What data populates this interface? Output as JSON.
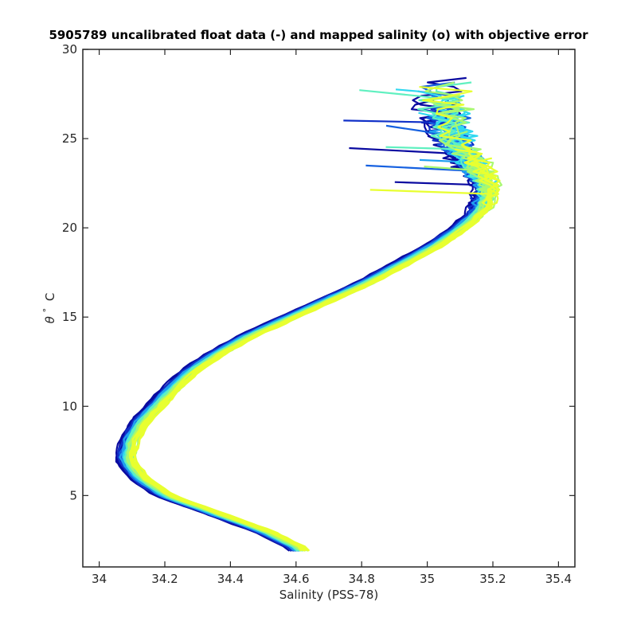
{
  "chart_data": {
    "type": "line",
    "title": "5905789 uncalibrated float data (-) and mapped salinity (o) with objective error",
    "xlabel": "Salinity (PSS-78)",
    "ylabel_symbol": "θ",
    "ylabel_degree": "°",
    "ylabel_unit": "C",
    "xlim": [
      33.95,
      35.45
    ],
    "ylim": [
      1,
      30
    ],
    "xticks": [
      "34",
      "34.2",
      "34.4",
      "34.6",
      "34.8",
      "35",
      "35.2",
      "35.4"
    ],
    "yticks": [
      "5",
      "10",
      "15",
      "20",
      "25",
      "30"
    ],
    "grid": false,
    "colormap": [
      "#0a0aa0",
      "#1030c8",
      "#1560e0",
      "#20a0f0",
      "#30d8f0",
      "#60f0c0",
      "#a8f870",
      "#e8ff30"
    ],
    "profile_count": 60,
    "mean_profile": {
      "theta": [
        2,
        3,
        4,
        5,
        6,
        7,
        8,
        9,
        10,
        11,
        12,
        13,
        14,
        15,
        16,
        17,
        18,
        19,
        20,
        21,
        22,
        23,
        24,
        25,
        26,
        27,
        28
      ],
      "salinity": [
        34.61,
        34.5,
        34.35,
        34.2,
        34.12,
        34.08,
        34.09,
        34.12,
        34.17,
        34.22,
        34.28,
        34.36,
        34.46,
        34.58,
        34.7,
        34.82,
        34.92,
        35.02,
        35.1,
        35.16,
        35.18,
        35.16,
        35.12,
        35.08,
        35.06,
        35.05,
        35.05
      ]
    }
  }
}
